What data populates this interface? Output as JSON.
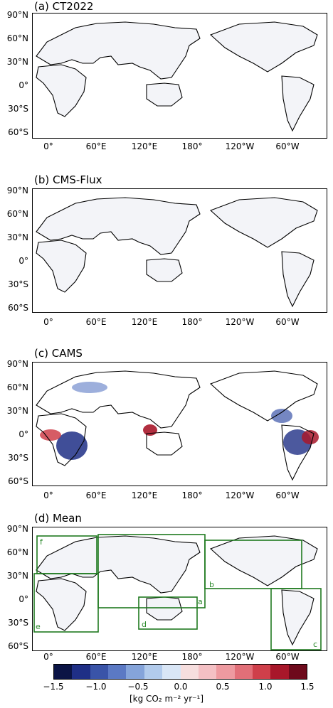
{
  "panels": [
    {
      "title": "(a) CT2022"
    },
    {
      "title": "(b) CMS-Flux"
    },
    {
      "title": "(c) CAMS"
    },
    {
      "title": "(d) Mean"
    }
  ],
  "lat_labels": [
    "90°N",
    "60°N",
    "30°N",
    "0°",
    "30°S",
    "60°S"
  ],
  "lon_labels": [
    "0°",
    "60°E",
    "120°E",
    "180°",
    "120°W",
    "60°W"
  ],
  "region_boxes": [
    "a",
    "b",
    "c",
    "d",
    "e",
    "f"
  ],
  "colorbar": {
    "ticks": [
      "−1.5",
      "−1.0",
      "−0.5",
      "0.0",
      "0.5",
      "1.0",
      "1.5"
    ],
    "units": "[kg CO₂ m⁻² yr⁻¹]",
    "colors": [
      "#0b1445",
      "#1f2f86",
      "#3a54a8",
      "#5b79c4",
      "#85a4da",
      "#b2cbec",
      "#d9e6f6",
      "#f6dede",
      "#f4c0c4",
      "#ee9aa0",
      "#e26f78",
      "#cf3f4a",
      "#a8172a",
      "#6e0a1c"
    ]
  }
}
